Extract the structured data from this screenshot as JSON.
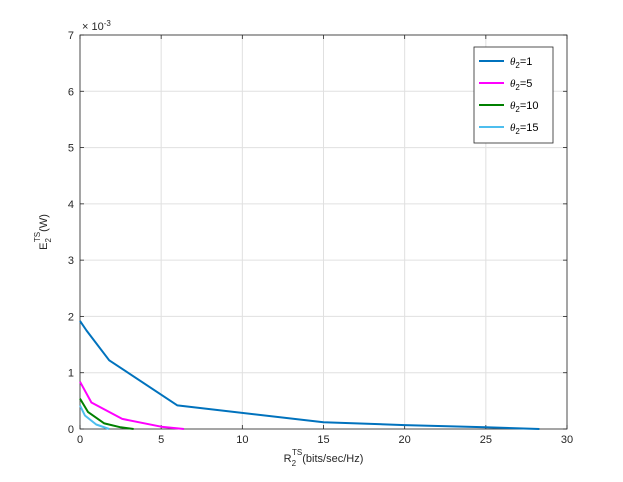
{
  "chart_data": {
    "type": "line",
    "title": "",
    "xlabel": {
      "main": "R",
      "sub": "2",
      "sup": "TS",
      "rest": "(bits/sec/Hz)"
    },
    "ylabel": {
      "main": "E",
      "sub": "2",
      "sup": "TS",
      "rest": "(W)"
    },
    "xlim": [
      0,
      30
    ],
    "ylim": [
      0,
      7
    ],
    "xticks": [
      "0",
      "5",
      "10",
      "15",
      "20",
      "25",
      "30"
    ],
    "yticks": [
      "0",
      "1",
      "2",
      "3",
      "4",
      "5",
      "6",
      "7"
    ],
    "y_exponent": {
      "base": "× 10",
      "power": "-3"
    },
    "grid": true,
    "legend_position": "top-right",
    "series": [
      {
        "name": "θ2=1",
        "label_main": "θ",
        "label_sub": "2",
        "label_rest": "=1",
        "color": "#0072BD",
        "x": [
          0,
          0.4,
          1.8,
          6.0,
          15.0,
          20.0,
          25.0,
          28.3
        ],
        "y": [
          1.92,
          1.75,
          1.22,
          0.42,
          0.12,
          0.07,
          0.03,
          0.0
        ]
      },
      {
        "name": "θ2=5",
        "label_main": "θ",
        "label_sub": "2",
        "label_rest": "=5",
        "color": "#FF00FF",
        "x": [
          0,
          0.7,
          2.6,
          5.0,
          6.4
        ],
        "y": [
          0.84,
          0.47,
          0.18,
          0.04,
          0.0
        ]
      },
      {
        "name": "θ2=10",
        "label_main": "θ",
        "label_sub": "2",
        "label_rest": "=10",
        "color": "#008000",
        "x": [
          0,
          0.5,
          1.5,
          2.5,
          3.3
        ],
        "y": [
          0.54,
          0.3,
          0.1,
          0.03,
          0.0
        ]
      },
      {
        "name": "θ2=15",
        "label_main": "θ",
        "label_sub": "2",
        "label_rest": "=15",
        "color": "#4DBEEE",
        "x": [
          0,
          0.3,
          1.0,
          1.8
        ],
        "y": [
          0.42,
          0.24,
          0.08,
          0.0
        ]
      }
    ]
  }
}
